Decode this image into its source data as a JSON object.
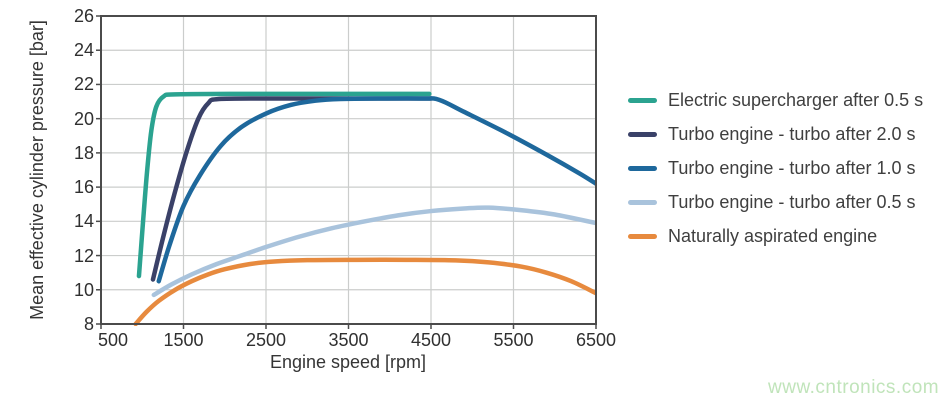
{
  "watermark": {
    "text": "www.cntronics.com",
    "color": "#c0e4ba"
  },
  "colors": {
    "text": "#353535",
    "tick_text": "#303030",
    "legend_text": "#3f3f3f",
    "grid": "#cbcdcc",
    "frame": "#4b4b4b",
    "background": "#ffffff"
  },
  "chart_data": {
    "type": "line",
    "title": "",
    "xlabel": "Engine speed [rpm]",
    "ylabel": "Mean effective cylinder pressure [bar]",
    "xlim": [
      500,
      6500
    ],
    "ylim": [
      8,
      26
    ],
    "xticks": [
      500,
      1500,
      2500,
      3500,
      4500,
      5500,
      6500
    ],
    "yticks": [
      8,
      10,
      12,
      14,
      16,
      18,
      20,
      22,
      24,
      26
    ],
    "grid": true,
    "legend_position": "right",
    "draw_order": [
      4,
      3,
      1,
      2,
      0
    ],
    "series": [
      {
        "name": "Electric supercharger after 0.5 s",
        "color": "#2ba390",
        "points": [
          [
            960,
            10.8
          ],
          [
            1010,
            14.0
          ],
          [
            1060,
            17.0
          ],
          [
            1110,
            19.3
          ],
          [
            1170,
            20.7
          ],
          [
            1260,
            21.3
          ],
          [
            1400,
            21.42
          ],
          [
            2200,
            21.45
          ],
          [
            3300,
            21.45
          ],
          [
            4480,
            21.45
          ]
        ]
      },
      {
        "name": "Turbo engine - turbo after 2.0 s",
        "color": "#3a4168",
        "points": [
          [
            1130,
            10.6
          ],
          [
            1250,
            13.0
          ],
          [
            1390,
            15.6
          ],
          [
            1540,
            18.1
          ],
          [
            1680,
            20.0
          ],
          [
            1800,
            20.9
          ],
          [
            1930,
            21.15
          ],
          [
            2600,
            21.18
          ],
          [
            3500,
            21.18
          ],
          [
            4500,
            21.18
          ]
        ]
      },
      {
        "name": "Turbo engine - turbo after 1.0 s",
        "color": "#1e689c",
        "points": [
          [
            1200,
            10.5
          ],
          [
            1330,
            12.6
          ],
          [
            1500,
            14.9
          ],
          [
            1700,
            16.7
          ],
          [
            1950,
            18.4
          ],
          [
            2200,
            19.5
          ],
          [
            2500,
            20.3
          ],
          [
            2800,
            20.8
          ],
          [
            3100,
            21.05
          ],
          [
            3400,
            21.15
          ],
          [
            3900,
            21.18
          ],
          [
            4400,
            21.18
          ],
          [
            4600,
            21.1
          ],
          [
            4900,
            20.4
          ],
          [
            5400,
            19.2
          ],
          [
            5900,
            17.9
          ],
          [
            6300,
            16.8
          ],
          [
            6500,
            16.2
          ]
        ]
      },
      {
        "name": "Turbo engine - turbo after 0.5 s",
        "color": "#a9c3dc",
        "points": [
          [
            1140,
            9.7
          ],
          [
            1350,
            10.3
          ],
          [
            1600,
            10.9
          ],
          [
            1900,
            11.5
          ],
          [
            2200,
            12.0
          ],
          [
            2500,
            12.5
          ],
          [
            2900,
            13.1
          ],
          [
            3300,
            13.6
          ],
          [
            3700,
            14.0
          ],
          [
            4100,
            14.35
          ],
          [
            4500,
            14.6
          ],
          [
            4900,
            14.75
          ],
          [
            5200,
            14.8
          ],
          [
            5600,
            14.65
          ],
          [
            6000,
            14.4
          ],
          [
            6500,
            13.9
          ]
        ]
      },
      {
        "name": "Naturally aspirated engine",
        "color": "#e78a3e",
        "points": [
          [
            920,
            8.0
          ],
          [
            1050,
            8.7
          ],
          [
            1200,
            9.35
          ],
          [
            1400,
            10.0
          ],
          [
            1600,
            10.5
          ],
          [
            1800,
            10.9
          ],
          [
            2000,
            11.2
          ],
          [
            2300,
            11.5
          ],
          [
            2600,
            11.65
          ],
          [
            3000,
            11.73
          ],
          [
            3600,
            11.75
          ],
          [
            4200,
            11.75
          ],
          [
            4800,
            11.72
          ],
          [
            5200,
            11.6
          ],
          [
            5600,
            11.35
          ],
          [
            5900,
            11.0
          ],
          [
            6200,
            10.5
          ],
          [
            6500,
            9.8
          ]
        ]
      }
    ]
  }
}
